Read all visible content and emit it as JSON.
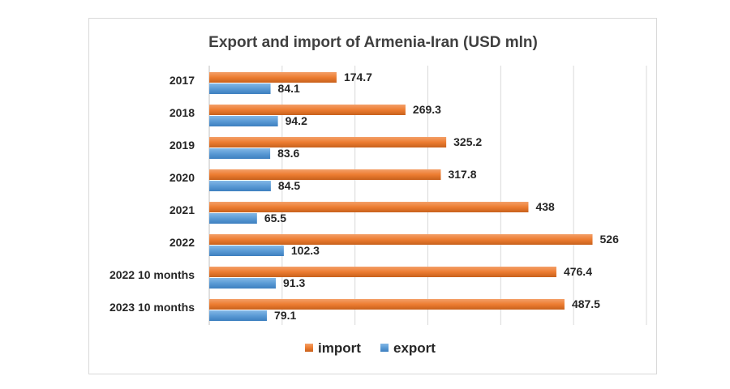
{
  "chart_data": {
    "type": "bar",
    "orientation": "horizontal",
    "title": "Export and import of Armenia-Iran (USD mln)",
    "xlabel": "",
    "ylabel": "",
    "categories": [
      "2017",
      "2018",
      "2019",
      "2020",
      "2021",
      "2022",
      "2022 10 months",
      "2023 10 months"
    ],
    "series": [
      {
        "name": "import",
        "values": [
          174.7,
          269.3,
          325.2,
          317.8,
          438,
          526,
          476.4,
          487.5
        ],
        "color": "#ed7d31"
      },
      {
        "name": "export",
        "values": [
          84.1,
          94.2,
          83.6,
          84.5,
          65.5,
          102.3,
          91.3,
          79.1
        ],
        "color": "#5b9bd5"
      }
    ],
    "xlim": [
      0,
      600
    ],
    "grid": true,
    "legend": "bottom"
  }
}
